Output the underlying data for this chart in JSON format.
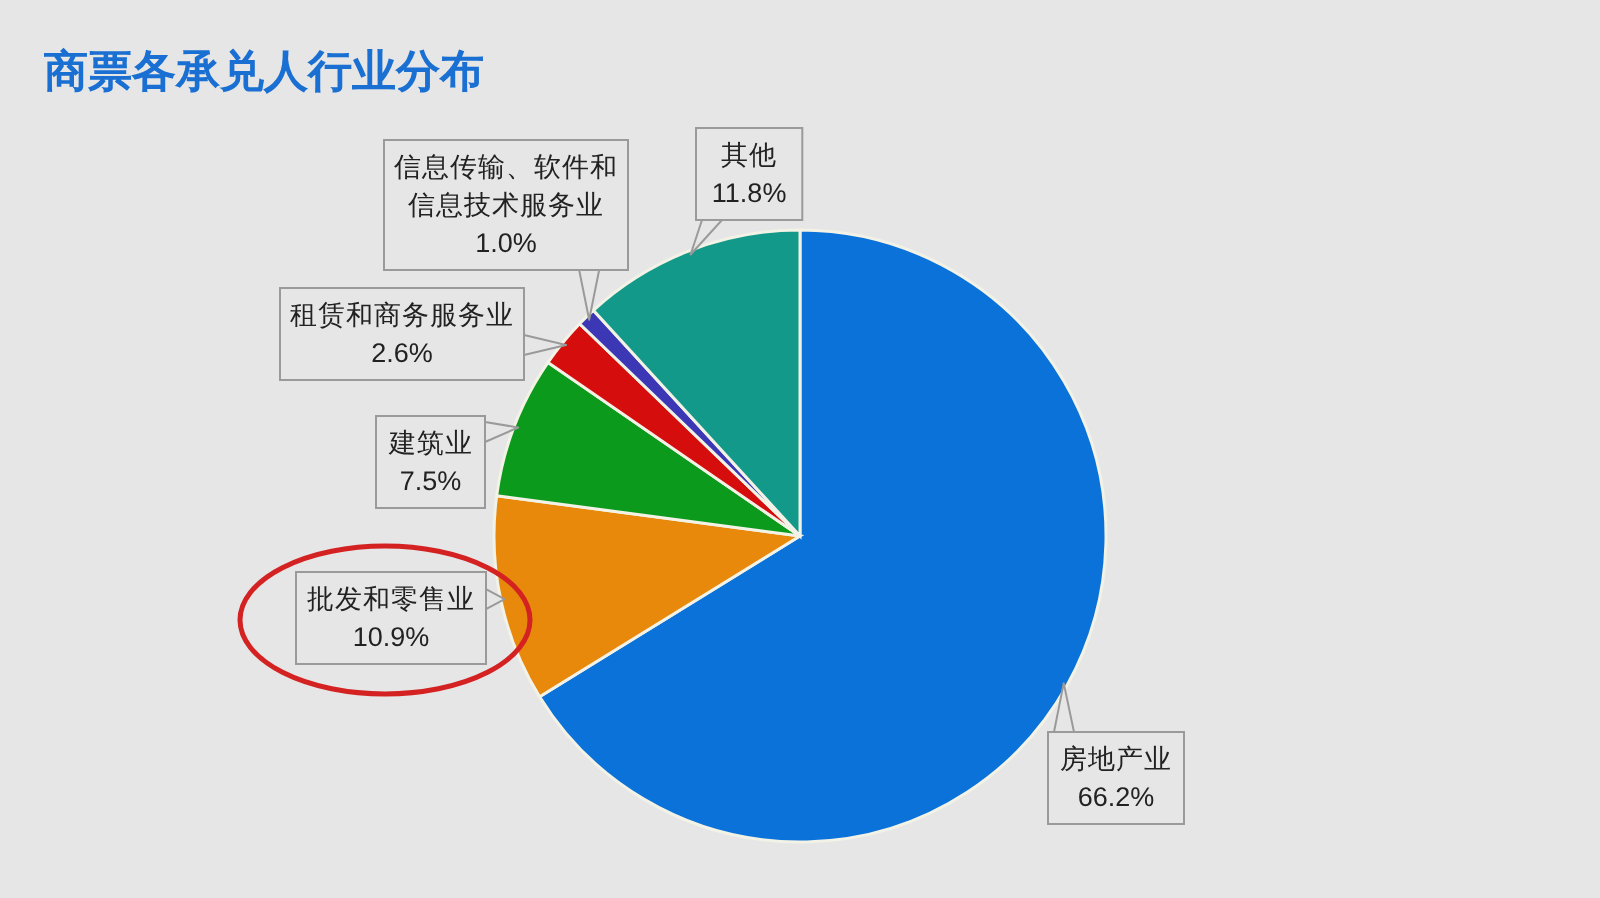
{
  "chart_data": {
    "type": "pie",
    "title": "商票各承兑人行业分布",
    "categories": [
      "房地产业",
      "批发和零售业",
      "建筑业",
      "租赁和商务服务业",
      "信息传输、软件和信息技术服务业",
      "其他"
    ],
    "values": [
      66.2,
      10.9,
      7.5,
      2.6,
      1.0,
      11.8
    ],
    "colors": [
      "#0b72d9",
      "#e8890c",
      "#0c9a1c",
      "#d60d0d",
      "#3c37b4",
      "#12998a"
    ],
    "value_labels": [
      "66.2%",
      "10.9%",
      "7.5%",
      "2.6%",
      "1.0%",
      "11.8%"
    ]
  }
}
